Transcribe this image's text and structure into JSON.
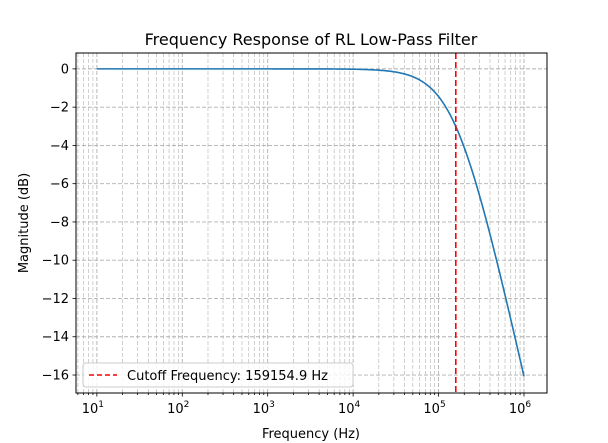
{
  "chart_data": {
    "type": "line",
    "title": "Frequency Response of RL Low-Pass Filter",
    "xlabel": "Frequency (Hz)",
    "ylabel": "Magnitude (dB)",
    "xscale": "log",
    "xlim": [
      5.7,
      1860000
    ],
    "ylim": [
      -16.94,
      0.83
    ],
    "xticks": [
      10,
      100,
      1000,
      10000,
      100000,
      1000000
    ],
    "xtick_labels": [
      [
        "10",
        "1"
      ],
      [
        "10",
        "2"
      ],
      [
        "10",
        "3"
      ],
      [
        "10",
        "4"
      ],
      [
        "10",
        "5"
      ],
      [
        "10",
        "6"
      ]
    ],
    "yticks": [
      0,
      -2,
      -4,
      -6,
      -8,
      -10,
      -12,
      -14,
      -16
    ],
    "ytick_labels": [
      "0",
      "−2",
      "−4",
      "−6",
      "−8",
      "−10",
      "−12",
      "−14",
      "−16"
    ],
    "grid": "major and minor, dashed",
    "series": [
      {
        "color": "#1f77b4",
        "cutoff_hz": 159154.9,
        "x_range": [
          10,
          1000000
        ],
        "points": [
          [
            10,
            0
          ],
          [
            1000,
            0
          ],
          [
            10000,
            -0.02
          ],
          [
            30000,
            -0.15
          ],
          [
            50000,
            -0.41
          ],
          [
            100000,
            -1.44
          ],
          [
            159154.9,
            -3.01
          ],
          [
            200000,
            -4.14
          ],
          [
            300000,
            -6.39
          ],
          [
            500000,
            -10.36
          ],
          [
            700000,
            -13.03
          ],
          [
            1000000,
            -16.07
          ]
        ]
      }
    ],
    "vline": {
      "x": 159154.9,
      "color": "#ff0000",
      "style": "dashed"
    },
    "legend": {
      "placement": "lower-left",
      "entries": [
        {
          "label": "Cutoff Frequency: 159154.9 Hz",
          "color": "#ff0000"
        }
      ]
    }
  }
}
